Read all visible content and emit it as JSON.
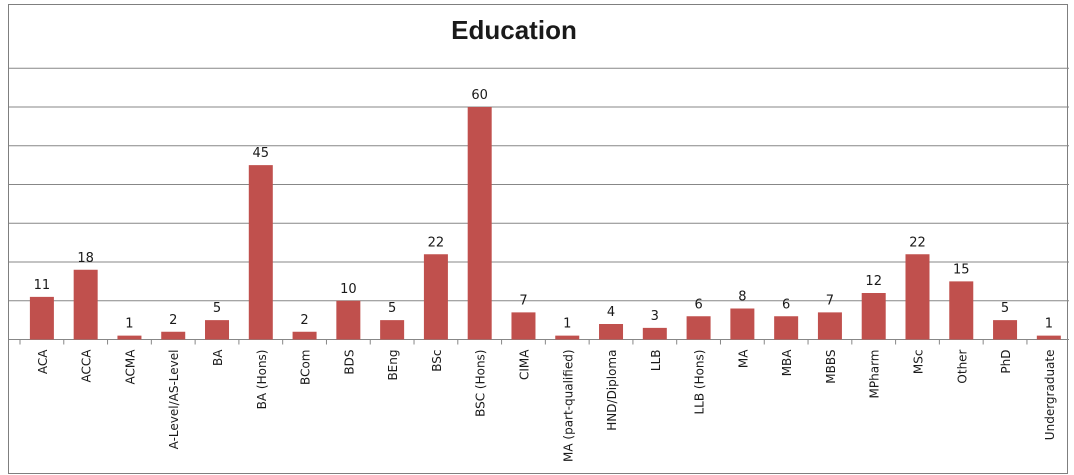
{
  "chart_data": {
    "type": "bar",
    "title": "Education",
    "xlabel": "",
    "ylabel": "",
    "ylim": [
      0,
      70
    ],
    "grid": true,
    "legend": "none",
    "categories": [
      "ACA",
      "ACCA",
      "ACMA",
      "A-Level/AS-Level",
      "BA",
      "BA (Hons)",
      "BCom",
      "BDS",
      "BEng",
      "BSc",
      "BSC (Hons)",
      "CIMA",
      "MA (part-qualified)",
      "HND/Diploma",
      "LLB",
      "LLB (Hons)",
      "MA",
      "MBA",
      "MBBS",
      "MPharm",
      "MSc",
      "Other",
      "PhD",
      "Undergraduate"
    ],
    "values": [
      11,
      18,
      1,
      2,
      5,
      45,
      2,
      10,
      5,
      22,
      60,
      7,
      1,
      4,
      3,
      6,
      8,
      6,
      7,
      12,
      22,
      15,
      5,
      1
    ],
    "colors": {
      "bar": "#c0504d",
      "grid": "#878787",
      "axis": "#878787",
      "text": "#1a1a1a"
    }
  }
}
